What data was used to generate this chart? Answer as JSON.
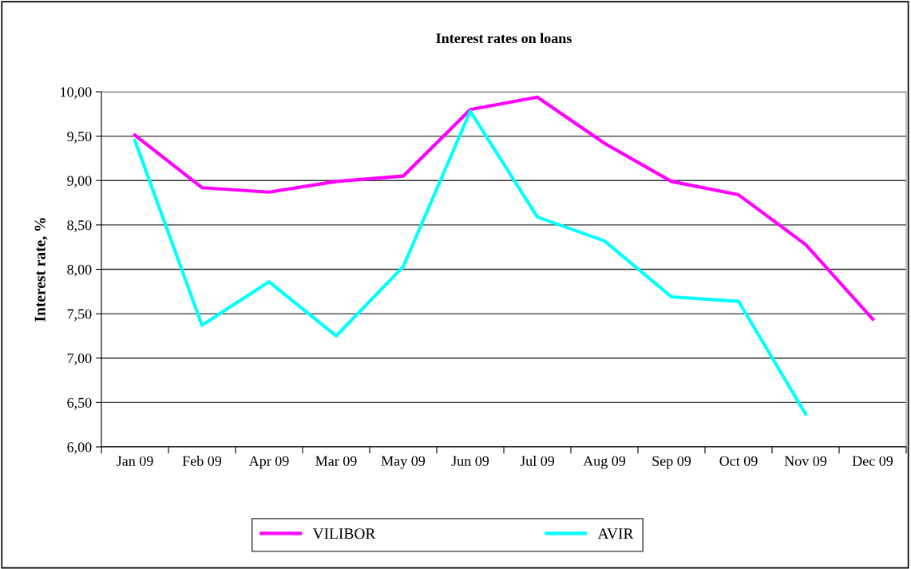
{
  "chart_data": {
    "type": "line",
    "title": "Interest rates on loans",
    "ylabel": "Interest rate, %",
    "categories": [
      "Jan 09",
      "Feb 09",
      "Apr 09",
      "Mar 09",
      "May 09",
      "Jun 09",
      "Jul 09",
      "Aug 09",
      "Sep 09",
      "Oct 09",
      "Nov 09",
      "Dec 09"
    ],
    "series": [
      {
        "name": "VILIBOR",
        "color": "#ff00ff",
        "values": [
          9.51,
          8.92,
          8.87,
          8.99,
          9.05,
          9.8,
          9.94,
          9.42,
          8.99,
          8.84,
          8.28,
          7.44
        ]
      },
      {
        "name": "AVIR",
        "color": "#00ffff",
        "values": [
          9.45,
          7.37,
          7.86,
          7.25,
          8.03,
          9.78,
          8.59,
          8.32,
          7.69,
          7.64,
          6.37,
          null
        ]
      }
    ],
    "ylim": [
      6,
      10
    ],
    "yticks": [
      {
        "value": 6,
        "label": "6,00"
      },
      {
        "value": 6.5,
        "label": "6,50"
      },
      {
        "value": 7,
        "label": "7,00"
      },
      {
        "value": 7.5,
        "label": "7,50"
      },
      {
        "value": 8,
        "label": "8,00"
      },
      {
        "value": 8.5,
        "label": "8,50"
      },
      {
        "value": 9,
        "label": "9,00"
      },
      {
        "value": 9.5,
        "label": "9,50"
      },
      {
        "value": 10,
        "label": "10,00"
      }
    ],
    "grid": "y",
    "legend": "bottom",
    "marker": "none",
    "line_style": "solid"
  }
}
